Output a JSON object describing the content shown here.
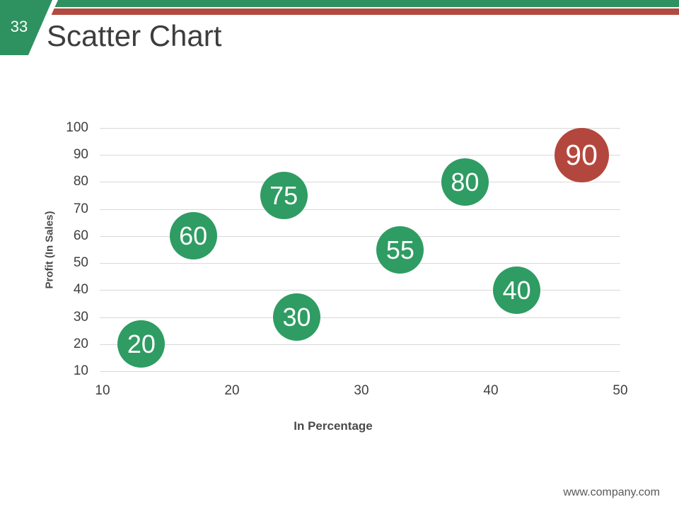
{
  "slide": {
    "page_number": "33",
    "title": "Scatter Chart",
    "footer": "www.company.com"
  },
  "theme": {
    "top_bar_green": "#2e9160",
    "top_bar_red": "#b24a40",
    "bubble_green": "#2f9c63",
    "bubble_red": "#b4473d",
    "title_color": "#3d3d3d",
    "tick_color": "#3f3f3f",
    "axis_title_color": "#4a4a4a",
    "gridline_color": "#d9d9d9",
    "bubble_text_color": "#ffffff",
    "footer_color": "#595959",
    "background": "#ffffff"
  },
  "chart_data": {
    "type": "scatter",
    "title": "",
    "xlabel": "In Percentage",
    "ylabel": "Profit  (In Sales)",
    "xlim": [
      10,
      50
    ],
    "ylim": [
      10,
      100
    ],
    "x_ticks": [
      10,
      20,
      30,
      40,
      50
    ],
    "y_ticks": [
      10,
      20,
      30,
      40,
      50,
      60,
      70,
      80,
      90,
      100
    ],
    "grid": "horizontal-only",
    "legend": "none",
    "points": [
      {
        "x": 13,
        "y": 20,
        "label": "20",
        "series": "green"
      },
      {
        "x": 17,
        "y": 60,
        "label": "60",
        "series": "green"
      },
      {
        "x": 24,
        "y": 75,
        "label": "75",
        "series": "green"
      },
      {
        "x": 25,
        "y": 30,
        "label": "30",
        "series": "green"
      },
      {
        "x": 33,
        "y": 55,
        "label": "55",
        "series": "green"
      },
      {
        "x": 38,
        "y": 80,
        "label": "80",
        "series": "green"
      },
      {
        "x": 42,
        "y": 40,
        "label": "40",
        "series": "green"
      },
      {
        "x": 47,
        "y": 90,
        "label": "90",
        "series": "red",
        "size": "large"
      }
    ]
  }
}
